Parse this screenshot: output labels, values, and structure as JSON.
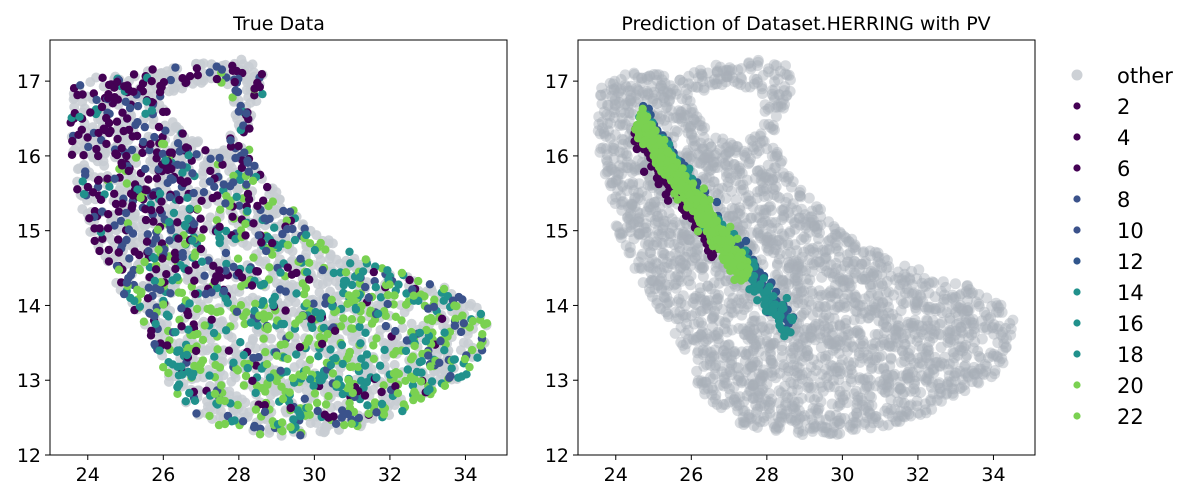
{
  "chart_data": [
    {
      "type": "scatter",
      "title": "True Data",
      "xlim": [
        23.0,
        35.1
      ],
      "ylim": [
        12.0,
        17.55
      ],
      "xticks": [
        24,
        26,
        28,
        30,
        32,
        34
      ],
      "yticks": [
        12,
        13,
        14,
        15,
        16,
        17
      ],
      "grid": false,
      "background_color": "#c8cdd2",
      "background_label": "other",
      "series": [
        {
          "name": "2",
          "color": "#440154",
          "region": "northwest"
        },
        {
          "name": "4",
          "color": "#440154",
          "region": "northwest"
        },
        {
          "name": "6",
          "color": "#440154",
          "region": "northwest"
        },
        {
          "name": "8",
          "color": "#3b528b",
          "region": "west"
        },
        {
          "name": "10",
          "color": "#3b528b",
          "region": "west"
        },
        {
          "name": "12",
          "color": "#31568c",
          "region": "central"
        },
        {
          "name": "14",
          "color": "#21918c",
          "region": "central-south"
        },
        {
          "name": "16",
          "color": "#21918c",
          "region": "southeast"
        },
        {
          "name": "18",
          "color": "#21918c",
          "region": "southeast"
        },
        {
          "name": "20",
          "color": "#7ad151",
          "region": "southeast"
        },
        {
          "name": "22",
          "color": "#7ad151",
          "region": "southeast"
        }
      ]
    },
    {
      "type": "scatter",
      "title": "Prediction of Dataset.HERRING with PV",
      "xlim": [
        23.0,
        35.1
      ],
      "ylim": [
        12.0,
        17.55
      ],
      "xticks": [
        24,
        26,
        28,
        30,
        32,
        34
      ],
      "yticks": [
        12,
        13,
        14,
        15,
        16,
        17
      ],
      "grid": false,
      "background_color": "#a9b0b8",
      "background_label": "other",
      "prediction_band": {
        "from": [
          24.6,
          16.5
        ],
        "to": [
          28.6,
          13.6
        ],
        "classes": [
          {
            "color": "#440154",
            "offset": -0.18
          },
          {
            "color": "#31568c",
            "offset": 0.12
          },
          {
            "color": "#21918c",
            "offset": 0.05
          },
          {
            "color": "#7ad151",
            "offset": -0.02
          }
        ]
      }
    }
  ],
  "legend": {
    "placement": "right",
    "items": [
      {
        "label": "other",
        "color": "#b8bec5",
        "kind": "large"
      },
      {
        "label": "2",
        "color": "#440154",
        "kind": "small"
      },
      {
        "label": "4",
        "color": "#440154",
        "kind": "small"
      },
      {
        "label": "6",
        "color": "#440154",
        "kind": "small"
      },
      {
        "label": "8",
        "color": "#3b528b",
        "kind": "small"
      },
      {
        "label": "10",
        "color": "#3b528b",
        "kind": "small"
      },
      {
        "label": "12",
        "color": "#31568c",
        "kind": "small"
      },
      {
        "label": "14",
        "color": "#21918c",
        "kind": "small"
      },
      {
        "label": "16",
        "color": "#21918c",
        "kind": "small"
      },
      {
        "label": "18",
        "color": "#21918c",
        "kind": "small"
      },
      {
        "label": "20",
        "color": "#7ad151",
        "kind": "small"
      },
      {
        "label": "22",
        "color": "#7ad151",
        "kind": "small"
      }
    ]
  }
}
